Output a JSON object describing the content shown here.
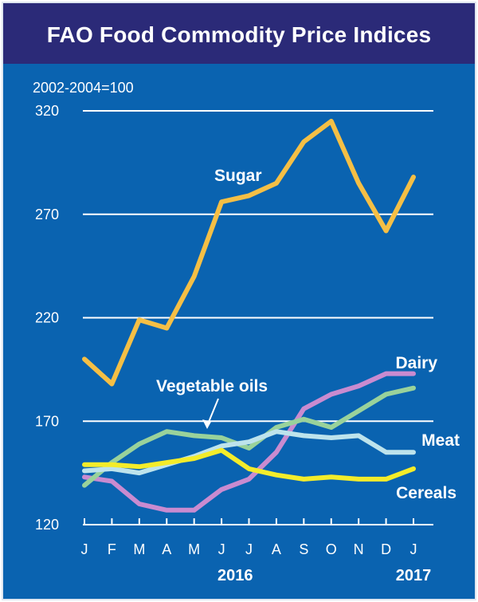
{
  "header": {
    "title": "FAO Food Commodity Price Indices"
  },
  "chart_data": {
    "type": "line",
    "title": "FAO Food Commodity Price Indices",
    "subtitle": "2002-2004=100",
    "categories": [
      "J",
      "F",
      "M",
      "A",
      "M",
      "J",
      "J",
      "A",
      "S",
      "O",
      "N",
      "D",
      "J"
    ],
    "year_labels": [
      {
        "text": "2016",
        "month_index": 5.5
      },
      {
        "text": "2017",
        "month_index": 12
      }
    ],
    "yticks": [
      120,
      170,
      220,
      270,
      320
    ],
    "ylim": [
      120,
      320
    ],
    "grid": true,
    "annotation": {
      "text": "Vegetable oils",
      "series": "Vegetable oils",
      "arrow_to_month_index": 4.5
    },
    "series": [
      {
        "name": "Sugar",
        "label": "Sugar",
        "color": "#f5bf45",
        "values": [
          200,
          188,
          219,
          215,
          240,
          276,
          279,
          285,
          305,
          315,
          285,
          262,
          288
        ]
      },
      {
        "name": "Dairy",
        "label": "Dairy",
        "color": "#c98bd0",
        "values": [
          143,
          141,
          130,
          127,
          127,
          137,
          142,
          155,
          176,
          183,
          187,
          193,
          193
        ]
      },
      {
        "name": "Vegetable oils",
        "label": "Vegetable oils",
        "color": "#99d29b",
        "values": [
          139,
          150,
          159,
          165,
          163,
          162,
          157,
          167,
          171,
          167,
          175,
          183,
          186
        ]
      },
      {
        "name": "Meat",
        "label": "Meat",
        "color": "#bde3ec",
        "values": [
          146,
          147,
          145,
          149,
          153,
          158,
          160,
          165,
          163,
          162,
          163,
          155,
          155
        ]
      },
      {
        "name": "Cereals",
        "label": "Cereals",
        "color": "#f4ec2a",
        "values": [
          149,
          149,
          148,
          150,
          152,
          156,
          147,
          144,
          142,
          143,
          142,
          142,
          147
        ]
      }
    ]
  }
}
